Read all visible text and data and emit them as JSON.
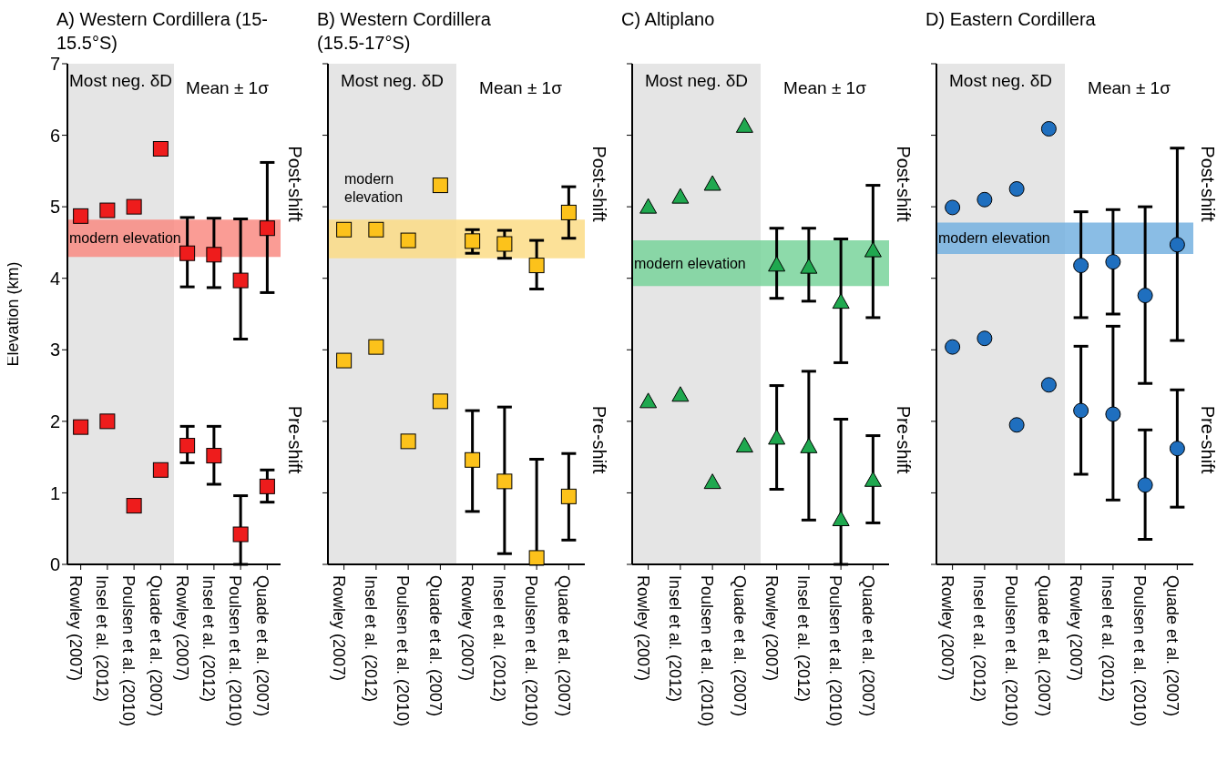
{
  "chart_data": [
    {
      "type": "scatter",
      "title": "A) Western Cordillera (15-15.5°S)",
      "ylabel": "Elevation (km)",
      "categories": [
        "Rowley (2007)",
        "Insel et al. (2012)",
        "Poulsen et al. (2010)",
        "Quade et al. (2007)",
        "Rowley (2007)",
        "Insel et al. (2012)",
        "Poulsen et al. (2010)",
        "Quade et al. (2007)"
      ],
      "ylim": [
        0,
        7
      ],
      "yticks": [
        0,
        1,
        2,
        3,
        4,
        5,
        6,
        7
      ],
      "grid": false,
      "marker": "square",
      "series": [
        {
          "color": "#ee1c1c",
          "values": [
            4.87,
            4.95,
            5.0,
            5.81,
            4.35,
            4.33,
            3.97,
            4.7
          ],
          "errors": [
            null,
            null,
            null,
            null,
            [
              3.88,
              4.85
            ],
            [
              3.87,
              4.84
            ],
            [
              3.15,
              4.83
            ],
            [
              3.8,
              5.62
            ]
          ]
        },
        {
          "color": "#ee1c1c",
          "values": [
            1.92,
            2.0,
            0.82,
            1.32,
            1.66,
            1.52,
            0.42,
            1.09
          ],
          "errors": [
            null,
            null,
            null,
            null,
            [
              1.42,
              1.93
            ],
            [
              1.12,
              1.93
            ],
            [
              0,
              0.96
            ],
            [
              0.87,
              1.32
            ]
          ]
        }
      ],
      "bands": [
        {
          "axis": "x",
          "from": "Rowley (2007)",
          "to": "Quade et al. (2007)",
          "label": "Most neg. δD",
          "color": "#e5e5e5"
        },
        {
          "axis": "y",
          "from": 4.3,
          "to": 4.82,
          "label": "modern elevation",
          "color": "#f98b82"
        }
      ],
      "annotations": [
        "Mean ± 1σ",
        "Post-shift",
        "Pre-shift"
      ]
    },
    {
      "type": "scatter",
      "title": "B) Western Cordillera (15.5-17°S)",
      "categories": [
        "Rowley (2007)",
        "Insel et al. (2012)",
        "Poulsen et al. (2010)",
        "Quade et al. (2007)",
        "Rowley (2007)",
        "Insel et al. (2012)",
        "Poulsen et al. (2010)",
        "Quade et al. (2007)"
      ],
      "ylim": [
        0,
        7
      ],
      "yticks": [
        0,
        1,
        2,
        3,
        4,
        5,
        6,
        7
      ],
      "tick_labels": "x",
      "grid": false,
      "marker": "square",
      "series": [
        {
          "color": "#fcc21b",
          "values": [
            4.68,
            4.68,
            4.53,
            5.3,
            4.52,
            4.48,
            4.18,
            4.92
          ],
          "errors": [
            null,
            null,
            null,
            null,
            [
              4.35,
              4.68
            ],
            [
              4.28,
              4.67
            ],
            [
              3.85,
              4.53
            ],
            [
              4.56,
              5.28
            ]
          ]
        },
        {
          "color": "#fcc21b",
          "values": [
            2.85,
            3.04,
            1.72,
            2.28,
            1.46,
            1.16,
            0.09,
            0.95
          ],
          "errors": [
            null,
            null,
            null,
            null,
            [
              0.74,
              2.15
            ],
            [
              0.15,
              2.2
            ],
            [
              0,
              1.47
            ],
            [
              0.34,
              1.55
            ]
          ]
        }
      ],
      "bands": [
        {
          "axis": "x",
          "from": "Rowley (2007)",
          "to": "Quade et al. (2007)",
          "label": "Most neg. δD",
          "color": "#e5e5e5"
        },
        {
          "axis": "y",
          "from": 4.28,
          "to": 4.82,
          "label": "modern elevation",
          "color": "#fbdc86"
        }
      ],
      "annotations": [
        "Mean ± 1σ",
        "Post-shift",
        "Pre-shift"
      ]
    },
    {
      "type": "scatter",
      "title": "C) Altiplano",
      "categories": [
        "Rowley (2007)",
        "Insel et al. (2012)",
        "Poulsen et al. (2010)",
        "Quade et al. (2007)",
        "Rowley (2007)",
        "Insel et al. (2012)",
        "Poulsen et al. (2010)",
        "Quade et al. (2007)"
      ],
      "ylim": [
        0,
        7
      ],
      "yticks": [
        0,
        1,
        2,
        3,
        4,
        5,
        6,
        7
      ],
      "tick_labels": "x",
      "grid": false,
      "marker": "triangle",
      "series": [
        {
          "color": "#1fa84f",
          "values": [
            5.0,
            5.14,
            5.32,
            6.13,
            4.19,
            4.16,
            3.67,
            4.39
          ],
          "errors": [
            null,
            null,
            null,
            null,
            [
              3.72,
              4.7
            ],
            [
              3.68,
              4.7
            ],
            [
              2.82,
              4.55
            ],
            [
              3.45,
              5.3
            ]
          ]
        },
        {
          "color": "#1fa84f",
          "values": [
            2.28,
            2.37,
            1.15,
            1.66,
            1.77,
            1.65,
            0.63,
            1.18
          ],
          "errors": [
            null,
            null,
            null,
            null,
            [
              1.05,
              2.5
            ],
            [
              0.62,
              2.7
            ],
            [
              0,
              2.03
            ],
            [
              0.58,
              1.8
            ]
          ]
        }
      ],
      "bands": [
        {
          "axis": "x",
          "from": "Rowley (2007)",
          "to": "Quade et al. (2007)",
          "label": "Most neg. δD",
          "color": "#e5e5e5"
        },
        {
          "axis": "y",
          "from": 3.89,
          "to": 4.53,
          "label": "modern elevation",
          "color": "#79d39b"
        }
      ],
      "annotations": [
        "Mean ± 1σ",
        "Post-shift",
        "Pre-shift"
      ]
    },
    {
      "type": "scatter",
      "title": "D) Eastern Cordillera",
      "categories": [
        "Rowley (2007)",
        "Insel et al. (2012)",
        "Poulsen et al. (2010)",
        "Quade et al. (2007)",
        "Rowley (2007)",
        "Insel et al. (2012)",
        "Poulsen et al. (2010)",
        "Quade et al. (2007)"
      ],
      "ylim": [
        0,
        7
      ],
      "yticks": [
        0,
        1,
        2,
        3,
        4,
        5,
        6,
        7
      ],
      "tick_labels": "x",
      "grid": false,
      "marker": "circle",
      "series": [
        {
          "color": "#1f6fbf",
          "values": [
            4.99,
            5.1,
            5.25,
            6.09,
            4.18,
            4.23,
            3.76,
            4.47
          ],
          "errors": [
            null,
            null,
            null,
            null,
            [
              3.45,
              4.93
            ],
            [
              3.5,
              4.96
            ],
            [
              2.53,
              5.0
            ],
            [
              3.13,
              5.82
            ]
          ]
        },
        {
          "color": "#1f6fbf",
          "values": [
            3.04,
            3.16,
            1.95,
            2.51,
            2.15,
            2.1,
            1.11,
            1.62
          ],
          "errors": [
            null,
            null,
            null,
            null,
            [
              1.26,
              3.05
            ],
            [
              0.9,
              3.33
            ],
            [
              0.35,
              1.88
            ],
            [
              0.8,
              2.44
            ]
          ]
        }
      ],
      "bands": [
        {
          "axis": "x",
          "from": "Rowley (2007)",
          "to": "Quade et al. (2007)",
          "label": "Most neg. δD",
          "color": "#e5e5e5"
        },
        {
          "axis": "y",
          "from": 4.34,
          "to": 4.78,
          "label": "modern elevation",
          "color": "#75b1e0"
        }
      ],
      "annotations": [
        "Mean ± 1σ",
        "Post-shift",
        "Pre-shift"
      ]
    }
  ]
}
